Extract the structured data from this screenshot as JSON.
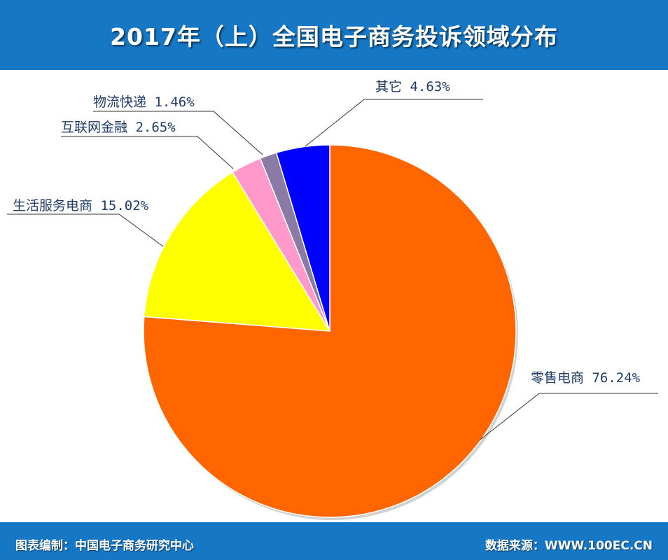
{
  "header": {
    "title": "2017年（上）全国电子商务投诉领域分布"
  },
  "footer": {
    "credit": "图表编制：中国电子商务研究中心",
    "source": "数据来源：WWW.100EC.CN"
  },
  "chart_data": {
    "type": "pie",
    "title": "2017年（上）全国电子商务投诉领域分布",
    "slices": [
      {
        "name": "零售电商",
        "value": 76.24,
        "label": "零售电商 76.24%",
        "color": "#ff6600"
      },
      {
        "name": "生活服务电商",
        "value": 15.02,
        "label": "生活服务电商 15.02%",
        "color": "#ffff00"
      },
      {
        "name": "互联网金融",
        "value": 2.65,
        "label": "互联网金融 2.65%",
        "color": "#ff99cc"
      },
      {
        "name": "物流快递",
        "value": 1.46,
        "label": "物流快递 1.46%",
        "color": "#8a7aa6"
      },
      {
        "name": "其它",
        "value": 4.63,
        "label": "其它 4.63%",
        "color": "#0000ff"
      }
    ],
    "start": "12 o'clock",
    "direction": "clockwise",
    "legend": "none"
  }
}
